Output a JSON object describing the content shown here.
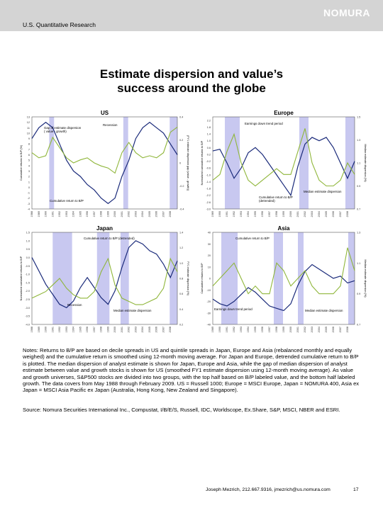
{
  "header": {
    "text": "U.S. Quantitative Research",
    "logo": "NOMURA"
  },
  "title_line1": "Estimate dispersion and value’s",
  "title_line2": "success around the globe",
  "colors": {
    "blue": "#1a2a7a",
    "green": "#8fb63a",
    "recession": "#c8c8f0"
  },
  "notes": "Notes: Returns to B/P are based on decile spreads in US and quintile spreads in Japan, Europe and Asia (rebalanced monthly and equally weighed) and the cumulative return is smoothed using 12-month moving average. For Japan and Europe, detrended cumulative return to B/P is plotted. The median dispersion of analyst estimate is shown for Japan, Europe and Asia, while the gap of median dispersion of analyst estimate between value and growth stocks is shown for US (smoothed FY1 estimate dispersion using 12-month moving average). As value and growth universes, S&P500 stocks are divided into two groups, with the top half based on B/P labeled value, and the bottom half labeled growth. The data covers from May 1988 through February 2009. US = Russell 1000; Europe = MSCI Europe, Japan = NOMURA 400, Asia ex Japan = MSCI Asia Pacific ex Japan (Australia, Hong Kong, New Zealand and Singapore).",
  "source": "Source: Nomura Securities International Inc., Compustat, I/B/E/S, Russell, IDC, Worldscope, Ex.Share, S&P, MSCI, NBER and ESRI.",
  "footer": {
    "author": "Joseph Mezrich, 212.667.9316, jmezrich@us.nomura.com",
    "page": "17"
  },
  "chart_data": [
    {
      "type": "line",
      "title": "US",
      "ylabel": "Cumulative returns to B/P (%)",
      "y2label": "(FY1 estimate dispersion gap (value - growth))",
      "x": [
        1988,
        1989,
        1990,
        1991,
        1992,
        1993,
        1994,
        1995,
        1996,
        1997,
        1998,
        1999,
        2000,
        2001,
        2002,
        2003,
        2004,
        2005,
        2006,
        2007,
        2008,
        2009
      ],
      "xlabels": [
        "1988",
        "1989",
        "1990",
        "1991",
        "1992",
        "1993",
        "1994",
        "1995",
        "1996",
        "1997",
        "1998",
        "1999",
        "2000",
        "2001",
        "2002",
        "2003",
        "2004",
        "2005",
        "2006",
        "2007",
        "2008"
      ],
      "ylim": [
        -4,
        13
      ],
      "yticks": [
        "-4",
        "-3",
        "-2",
        "-1",
        "0",
        "1",
        "2",
        "3",
        "4",
        "5",
        "6",
        "7",
        "8",
        "9",
        "10",
        "11",
        "12",
        "13"
      ],
      "y2lim": [
        -0.4,
        0.5
      ],
      "y2ticks": [
        "-0.4",
        "-0.2",
        "0",
        "0.2",
        "0.4"
      ],
      "recessions": [
        [
          1990.5,
          1991.2
        ],
        [
          2001.2,
          2001.9
        ],
        [
          2007.9,
          2009
        ]
      ],
      "series": [
        {
          "name": "Cumulative return to B/P",
          "axis": "left",
          "color": "blue",
          "values": [
            9,
            11,
            12,
            11,
            8,
            5,
            3,
            2,
            0.5,
            -0.5,
            -2,
            -3,
            -2,
            2,
            5,
            9,
            11,
            12,
            11,
            10,
            8,
            6
          ]
        },
        {
          "name": "Gap of estimate dispersion (value - growth)",
          "axis": "right",
          "color": "green",
          "values": [
            0.15,
            0.1,
            0.12,
            0.3,
            0.2,
            0.1,
            0.05,
            0.08,
            0.1,
            0.05,
            0.02,
            0.0,
            -0.05,
            0.15,
            0.25,
            0.15,
            0.1,
            0.12,
            0.1,
            0.15,
            0.35,
            0.4
          ]
        }
      ],
      "annotations": [
        "Recession",
        "Gap of estimate dispersion\n( value - growth)",
        "Cumulative return to B/P"
      ]
    },
    {
      "type": "line",
      "title": "Europe",
      "ylabel": "Normalized cumulative returns to B/P",
      "y2label": "Median estimate dispersion (%)",
      "x": [
        1989,
        1990,
        1991,
        1992,
        1993,
        1994,
        1995,
        1996,
        1997,
        1998,
        1999,
        2000,
        2001,
        2002,
        2003,
        2004,
        2005,
        2006,
        2007,
        2008,
        2009
      ],
      "xlabels": [
        "1989",
        "1990",
        "1991",
        "1992",
        "1993",
        "1994",
        "1995",
        "1996",
        "1997",
        "1998",
        "1999",
        "2000",
        "2001",
        "2002",
        "2003",
        "2004",
        "2005",
        "2006",
        "2007",
        "2008"
      ],
      "ylim": [
        -3.0,
        2.4
      ],
      "yticks": [
        "-3.0",
        "-2.8",
        "-2.6",
        "-2.4",
        "-2.2",
        "-2.0",
        "-1.8",
        "-1.6",
        "-1.4",
        "-1.2",
        "-1.0",
        "-0.8",
        "-0.6",
        "-0.4",
        "-0.2",
        "0.0",
        "0.2",
        "0.4",
        "0.6",
        "0.8",
        "1.0",
        "1.2",
        "1.4",
        "1.6",
        "1.8",
        "2.0",
        "2.2",
        "2.4"
      ],
      "y2lim": [
        0.7,
        1.5
      ],
      "y2ticks": [
        "0.7",
        "0.9",
        "1.1",
        "1.3",
        "1.5"
      ],
      "recessions": [
        [
          1990.7,
          1992.8
        ],
        [
          2001.2,
          2002.5
        ],
        [
          2007.7,
          2009
        ]
      ],
      "series": [
        {
          "name": "Cumulative return to B/P (detrended)",
          "axis": "left",
          "color": "blue",
          "values": [
            0.4,
            0.5,
            -0.3,
            -1.2,
            -0.6,
            0.3,
            0.6,
            0.2,
            -0.4,
            -1.0,
            -1.6,
            -2.2,
            -0.5,
            0.8,
            1.2,
            1.0,
            1.2,
            0.6,
            -0.3,
            -1.2,
            -0.2
          ]
        },
        {
          "name": "Median estimate dispersion",
          "axis": "right",
          "color": "green",
          "values": [
            0.95,
            1.0,
            1.2,
            1.35,
            1.1,
            0.95,
            0.9,
            0.95,
            1.0,
            1.05,
            1.0,
            1.0,
            1.2,
            1.4,
            1.1,
            0.95,
            0.9,
            0.9,
            0.95,
            1.1,
            1.0
          ]
        }
      ],
      "annotations": [
        "Earnings down trend period",
        "Cumulative return to B/P\n(detrended)",
        "Median estimate dispersion"
      ]
    },
    {
      "type": "line",
      "title": "Japan",
      "ylabel": "Normalized cumulative returns to B/P",
      "y2label": "FY1 estimate dispersion (%)",
      "x": [
        1988,
        1989,
        1990,
        1991,
        1992,
        1993,
        1994,
        1995,
        1996,
        1997,
        1998,
        1999,
        2000,
        2001,
        2002,
        2003,
        2004,
        2005,
        2006,
        2007,
        2008,
        2009
      ],
      "xlabels": [
        "1988",
        "1989",
        "1990",
        "1991",
        "1992",
        "1993",
        "1994",
        "1995",
        "1996",
        "1997",
        "1998",
        "1999",
        "2000",
        "2001",
        "2002",
        "2003",
        "2004",
        "2005",
        "2006",
        "2007",
        "2008"
      ],
      "ylim": [
        -4.0,
        1.5
      ],
      "yticks": [
        "-4.0",
        "-3.5",
        "-3.0",
        "-2.5",
        "-2.0",
        "-1.5",
        "-1.0",
        "-0.5",
        "0.0",
        "0.5",
        "1.0",
        "1.5"
      ],
      "y2lim": [
        0.2,
        1.6
      ],
      "y2ticks": [
        "0.2",
        "0.4",
        "0.6",
        "0.8",
        "1.0",
        "1.2",
        "1.4"
      ],
      "recessions": [
        [
          1991.0,
          1993.8
        ],
        [
          1997.4,
          1999.2
        ],
        [
          2000.8,
          2002.0
        ],
        [
          2007.9,
          2009
        ]
      ],
      "series": [
        {
          "name": "Cumulative return to B/P (detrended)",
          "axis": "left",
          "color": "blue",
          "values": [
            0.0,
            -0.8,
            -1.6,
            -2.2,
            -2.8,
            -3.0,
            -2.6,
            -1.8,
            -1.2,
            -1.8,
            -2.4,
            -2.8,
            -2.0,
            -0.6,
            0.6,
            1.0,
            0.8,
            0.4,
            0.2,
            -0.4,
            -1.2,
            -0.2
          ]
        },
        {
          "name": "Median estimate dispersion",
          "axis": "right",
          "color": "green",
          "values": [
            0.6,
            0.65,
            0.7,
            0.8,
            0.9,
            0.75,
            0.65,
            0.6,
            0.6,
            0.7,
            1.0,
            1.2,
            0.8,
            0.6,
            0.55,
            0.5,
            0.5,
            0.55,
            0.6,
            0.75,
            1.2,
            1.0
          ]
        }
      ],
      "annotations": [
        "Cumulative return to B/P (detrended)",
        "Recession",
        "Median estimate dispersion"
      ]
    },
    {
      "type": "line",
      "title": "Asia",
      "ylabel": "Cumulative returns to B/P",
      "y2label": "Median estimate dispersion (%)",
      "x": [
        1989,
        1990,
        1991,
        1992,
        1993,
        1994,
        1995,
        1996,
        1997,
        1998,
        1999,
        2000,
        2001,
        2002,
        2003,
        2004,
        2005,
        2006,
        2007,
        2008,
        2009
      ],
      "xlabels": [
        "1989",
        "1990",
        "1991",
        "1992",
        "1993",
        "1994",
        "1995",
        "1996",
        "1997",
        "1998",
        "1999",
        "2000",
        "2001",
        "2002",
        "2003",
        "2004",
        "2005",
        "2006",
        "2007",
        "2008"
      ],
      "ylim": [
        -40,
        40
      ],
      "yticks": [
        "-40",
        "-30",
        "-20",
        "-10",
        "0",
        "10",
        "20",
        "30",
        "40"
      ],
      "y2lim": [
        0.7,
        1.3
      ],
      "y2ticks": [
        "0.7",
        "0.9",
        "1.1",
        "1.3"
      ],
      "recessions": [
        [
          1990.2,
          1992.5
        ],
        [
          1997.6,
          1998.9
        ],
        [
          2001.0,
          2001.8
        ],
        [
          2008.1,
          2009
        ]
      ],
      "series": [
        {
          "name": "Cumulative return to B/P",
          "axis": "left",
          "color": "blue",
          "values": [
            -18,
            -22,
            -24,
            -20,
            -14,
            -8,
            -12,
            -18,
            -24,
            -26,
            -28,
            -22,
            -6,
            6,
            12,
            8,
            4,
            0,
            2,
            -4,
            -2
          ]
        },
        {
          "name": "Median estimate dispersion",
          "axis": "right",
          "color": "green",
          "values": [
            0.95,
            1.0,
            1.05,
            1.1,
            1.0,
            0.9,
            0.95,
            0.9,
            0.9,
            1.1,
            1.05,
            0.95,
            1.0,
            1.05,
            0.95,
            0.9,
            0.9,
            0.9,
            0.95,
            1.2,
            1.05
          ]
        }
      ],
      "annotations": [
        "Cumulative return to B/P",
        "Earnings down trend period",
        "Median estimate dispersion"
      ]
    }
  ]
}
